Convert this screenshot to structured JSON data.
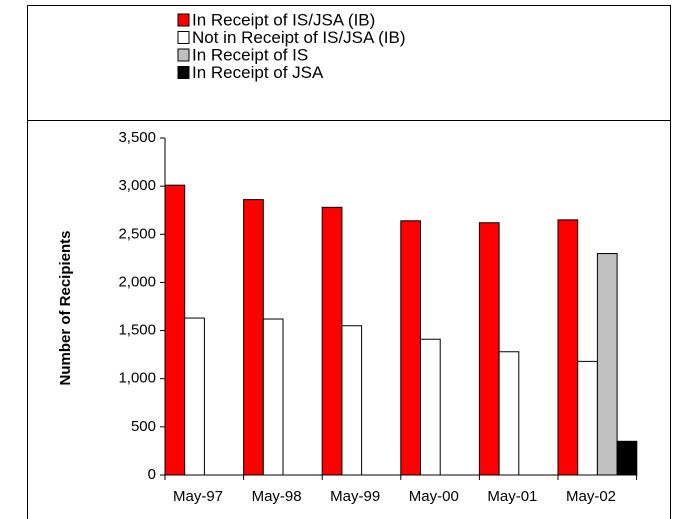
{
  "chart_data": {
    "type": "bar",
    "ylabel": "Number of Recipients",
    "categories": [
      "May-97",
      "May-98",
      "May-99",
      "May-00",
      "May-01",
      "May-02"
    ],
    "series": [
      {
        "name": "In Receipt of IS/JSA (IB)",
        "color": "#ff0000",
        "values": [
          3010,
          2860,
          2780,
          2640,
          2620,
          2650
        ]
      },
      {
        "name": "Not in Receipt of IS/JSA (IB)",
        "color": "#ffffff",
        "values": [
          1630,
          1620,
          1550,
          1410,
          1280,
          1180
        ]
      },
      {
        "name": "In Receipt of IS",
        "color": "#c0c0c0",
        "values": [
          null,
          null,
          null,
          null,
          null,
          2300
        ]
      },
      {
        "name": "In Receipt of JSA",
        "color": "#000000",
        "values": [
          null,
          null,
          null,
          null,
          null,
          350
        ]
      }
    ],
    "ylim": [
      0,
      3500
    ],
    "yticks": [
      0,
      500,
      {
        "value": 1000,
        "label": "1,000"
      },
      {
        "value": 1500,
        "label": "1,500"
      },
      {
        "value": 2000,
        "label": "2,000"
      },
      {
        "value": 2500,
        "label": "2,500"
      },
      {
        "value": 3000,
        "label": "3,000"
      },
      {
        "value": 3500,
        "label": "3,500"
      }
    ],
    "legend": "top"
  }
}
